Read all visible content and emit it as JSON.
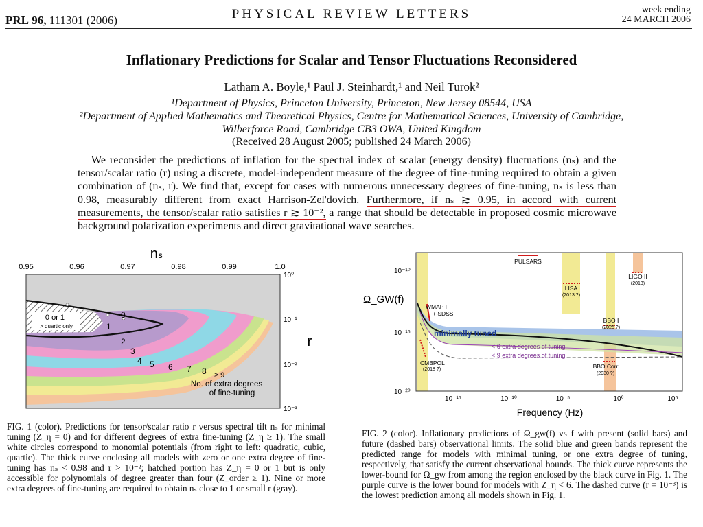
{
  "header": {
    "journal_abbr": "PRL",
    "volume": "96,",
    "citation": "111301 (2006)",
    "journal_name": "PHYSICAL REVIEW LETTERS",
    "week_ending_label": "week ending",
    "week_ending_date": "24 MARCH 2006"
  },
  "paper": {
    "title": "Inflationary Predictions for Scalar and Tensor Fluctuations Reconsidered",
    "authors": "Latham A. Boyle,¹ Paul J. Steinhardt,¹ and Neil Turok²",
    "affiliation1": "¹Department of Physics, Princeton University, Princeton, New Jersey 08544, USA",
    "affiliation2_line1": "²Department of Applied Mathematics and Theoretical Physics, Centre for Mathematical Sciences, University of Cambridge,",
    "affiliation2_line2": "Wilberforce Road, Cambridge CB3 OWA, United Kingdom",
    "received": "(Received 28 August 2005; published 24 March 2006)",
    "abstract_part1": "We reconsider the predictions of inflation for the spectral index of scalar (energy density) fluctuations (nₛ) and the tensor/scalar ratio (r) using a discrete, model-independent measure of the degree of fine-tuning required to obtain a given combination of (nₛ, r). We find that, except for cases with numerous unnecessary degrees of fine-tuning, nₛ is less than 0.98, measurably different from exact Harrison-Zel'dovich.",
    "abstract_highlight": "Furthermore, if nₛ ≳ 0.95, in accord with current measurements, the tensor/scalar ratio satisfies r ≳ 10⁻²,",
    "abstract_part2": "a range that should be detectable in proposed cosmic microwave background polarization experiments and direct gravitational wave searches."
  },
  "fig1": {
    "top_axis_label": "nₛ",
    "x_ticks": [
      "0.95",
      "0.96",
      "0.97",
      "0.98",
      "0.99",
      "1.0"
    ],
    "right_axis_label": "r",
    "y_ticks": [
      "10⁰",
      "10⁻¹",
      "10⁻²",
      "10⁻³"
    ],
    "hatched_label_line1": "0 or 1",
    "hatched_label_line2": "> quartic only",
    "region_labels": [
      "0",
      "1",
      "2",
      "3",
      "4",
      "5",
      "6",
      "7",
      "8",
      "≥ 9"
    ],
    "legend_line1": "No. of extra degrees",
    "legend_line2": "of fine-tuning",
    "caption": "FIG. 1 (color). Predictions for tensor/scalar ratio r versus spectral tilt nₛ for minimal tuning (Z_η = 0) and for different degrees of extra fine-tuning (Z_η ≥ 1). The small white circles correspond to monomial potentials (from right to left: quadratic, cubic, quartic). The thick curve enclosing all models with zero or one extra degree of fine-tuning has nₛ < 0.98 and r > 10⁻²; hatched portion has Z_η = 0 or 1 but is only accessible for polynomials of degree greater than four (Z_order ≥ 1). Nine or more extra degrees of fine-tuning are required to obtain nₛ close to 1 or small r (gray)."
  },
  "fig2": {
    "y_label": "Ω_GW(f)",
    "y_ticks": [
      "10⁻¹⁰",
      "10⁻¹⁵",
      "10⁻²⁰"
    ],
    "x_ticks": [
      "10⁻¹⁵",
      "10⁻¹⁰",
      "10⁻⁵",
      "10⁰",
      "10⁵"
    ],
    "x_label": "Frequency (Hz)",
    "labels": {
      "pulsars": "PULSARS",
      "lisa": "LISA",
      "lisa_year": "(2013 ?)",
      "ligo": "LIGO II",
      "ligo_year": "(2013)",
      "wmap": "WMAP I",
      "sdss": "+ SDSS",
      "bbo": "BBO I",
      "bbo_year": "(2025 ?)",
      "minimal": "minimally tuned",
      "six": "< 6  extra degrees of tuning",
      "nine": "< 9  extra degrees of tuning",
      "cmbpol": "CMBPOL",
      "cmbpol_year": "(2018 ?)",
      "bbocorr": "BBO Corr",
      "bbocorr_year": "(2030 ?)"
    },
    "caption": "FIG. 2 (color). Inflationary predictions of Ω_gw(f) vs f with present (solid bars) and future (dashed bars) observational limits. The solid blue and green bands represent the predicted range for models with minimal tuning, or one extra degree of tuning, respectively, that satisfy the current observational bounds. The thick curve represents the lower-bound for Ω_gw from among the region enclosed by the black curve in Fig. 1. The purple curve is the lower bound for models with Z_η < 6. The dashed curve (r = 10⁻³) is the lowest prediction among all models shown in Fig. 1."
  },
  "colors": {
    "highlight": "#d11b1b",
    "fig_gray": "#d4d4d4",
    "cyan": "#8fd8e6",
    "pink": "#f09ccc",
    "purple": "#b79acc",
    "green": "#c9e38e",
    "yellow": "#f2ea94",
    "peach": "#f5c49b",
    "blue_band": "#a9c4e9"
  }
}
